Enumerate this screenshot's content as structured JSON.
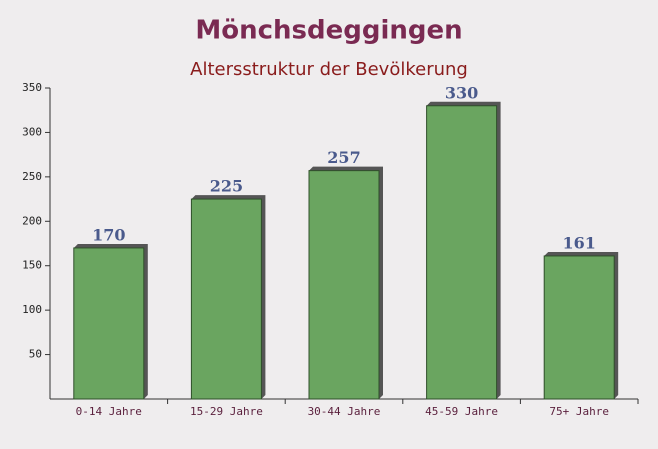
{
  "chart_data": {
    "type": "bar",
    "title": "Mönchsdeggingen",
    "subtitle": "Altersstruktur der Bevölkerung",
    "categories": [
      "0-14 Jahre",
      "15-29 Jahre",
      "30-44 Jahre",
      "45-59 Jahre",
      "75+ Jahre"
    ],
    "values": [
      170,
      225,
      257,
      330,
      161
    ],
    "color": "#6aa560",
    "ylim": [
      0,
      350
    ],
    "yticks": [
      50,
      100,
      150,
      200,
      250,
      300,
      350
    ]
  }
}
